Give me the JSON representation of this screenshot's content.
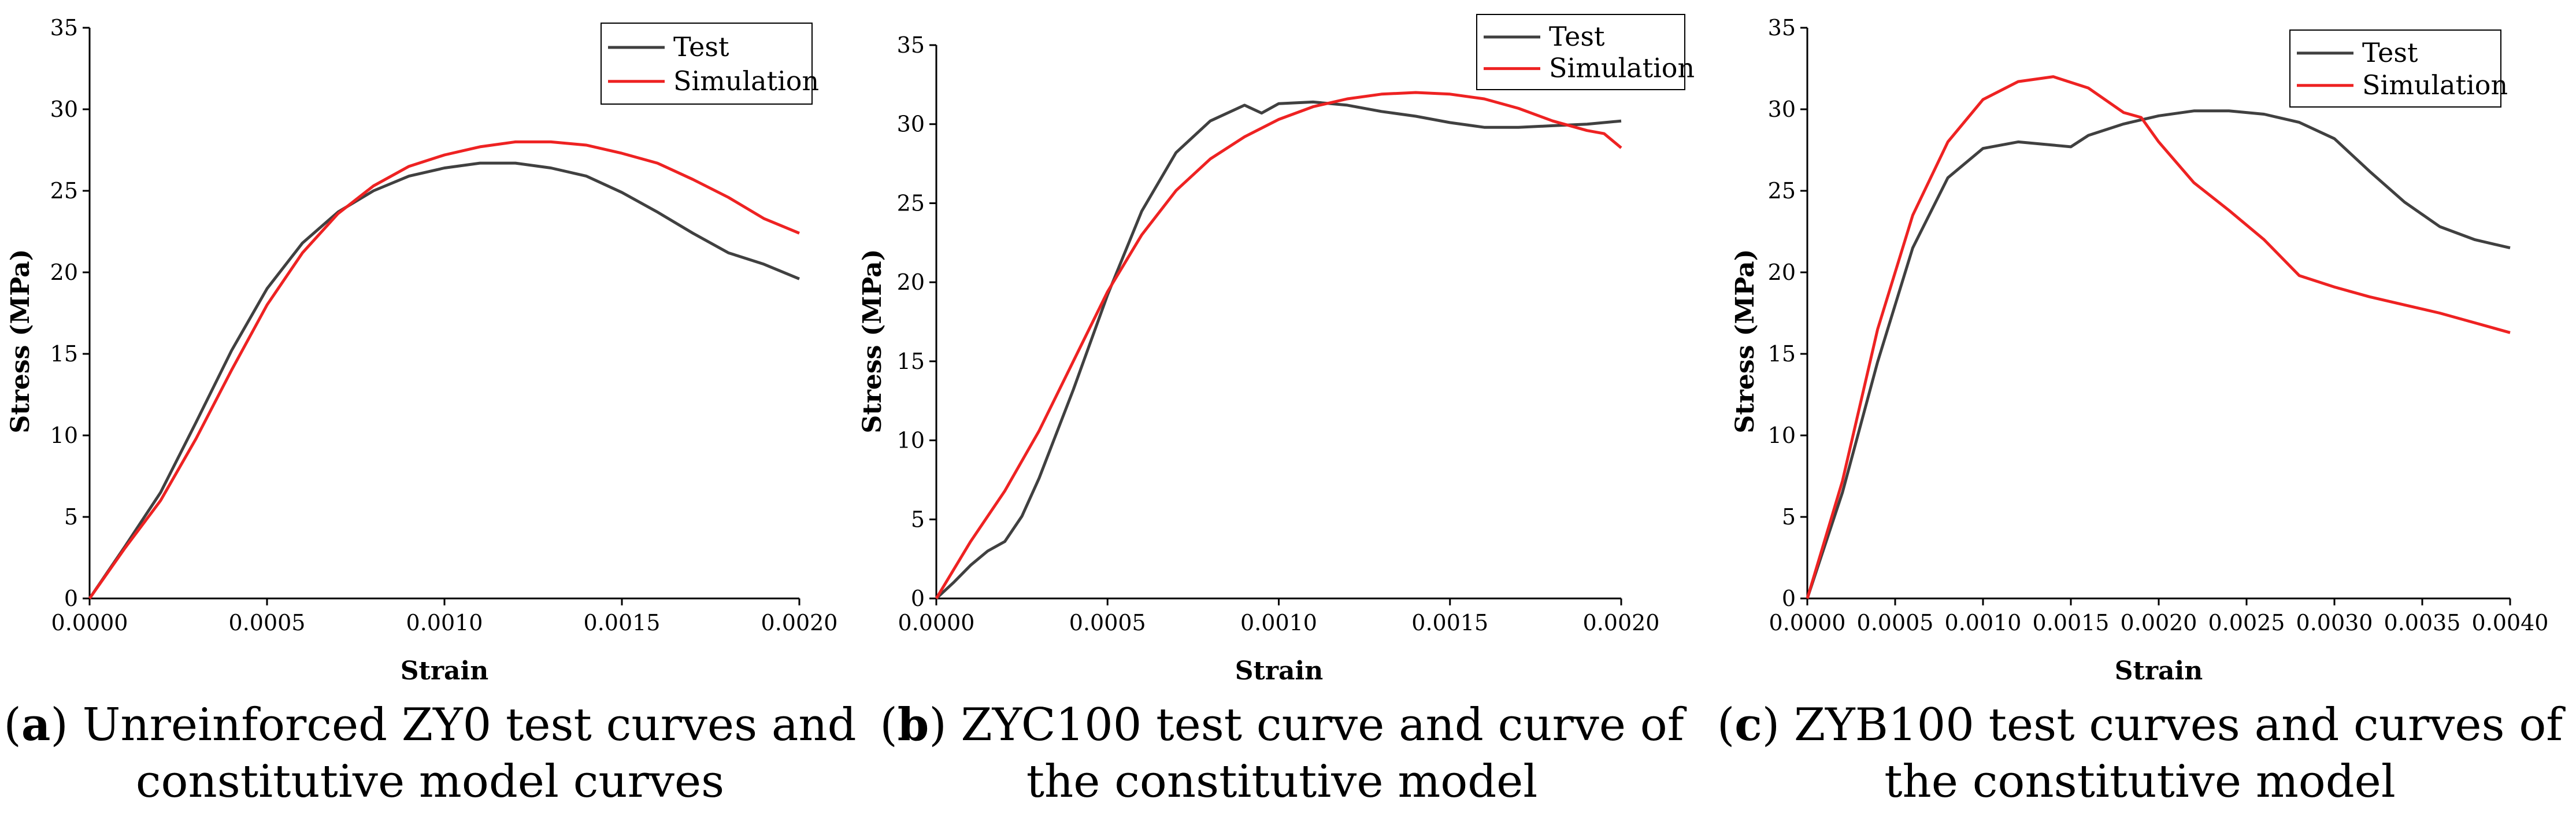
{
  "chart_data": [
    {
      "type": "line",
      "xlabel": "Strain",
      "ylabel": "Stress (MPa)",
      "xlim": [
        0,
        0.002
      ],
      "ylim": [
        0,
        35
      ],
      "xticks": [
        "0.0000",
        "0.0005",
        "0.0010",
        "0.0015",
        "0.0020"
      ],
      "yticks": [
        "0",
        "5",
        "10",
        "15",
        "20",
        "25",
        "30",
        "35"
      ],
      "legend_position": "top-right",
      "series": [
        {
          "name": "Test",
          "color": "#404040",
          "x": [
            0,
            0.0001,
            0.0002,
            0.0003,
            0.0004,
            0.0005,
            0.0006,
            0.0007,
            0.0008,
            0.0009,
            0.001,
            0.0011,
            0.0012,
            0.0013,
            0.0014,
            0.0015,
            0.0016,
            0.0017,
            0.0018,
            0.0019,
            0.002
          ],
          "y": [
            0,
            3.2,
            6.5,
            10.8,
            15.2,
            19.0,
            21.8,
            23.7,
            25.0,
            25.9,
            26.4,
            26.7,
            26.7,
            26.4,
            25.9,
            24.9,
            23.7,
            22.4,
            21.2,
            20.5,
            19.6
          ]
        },
        {
          "name": "Simulation",
          "color": "#ee2222",
          "x": [
            0,
            0.0001,
            0.0002,
            0.0003,
            0.0004,
            0.0005,
            0.0006,
            0.0007,
            0.0008,
            0.0009,
            0.001,
            0.0011,
            0.0012,
            0.0013,
            0.0014,
            0.0015,
            0.0016,
            0.0017,
            0.0018,
            0.0019,
            0.002
          ],
          "y": [
            0,
            3.1,
            6.0,
            9.8,
            14.0,
            18.0,
            21.2,
            23.6,
            25.3,
            26.5,
            27.2,
            27.7,
            28.0,
            28.0,
            27.8,
            27.3,
            26.7,
            25.7,
            24.6,
            23.3,
            22.4
          ]
        }
      ],
      "caption_label": "a",
      "caption_text": ") Unreinforced ZY0 test curves and constitutive model curves"
    },
    {
      "type": "line",
      "xlabel": "Strain",
      "ylabel": "Stress (MPa)",
      "xlim": [
        0,
        0.002
      ],
      "ylim": [
        0,
        35
      ],
      "xticks": [
        "0.0000",
        "0.0005",
        "0.0010",
        "0.0015",
        "0.0020"
      ],
      "yticks": [
        "0",
        "5",
        "10",
        "15",
        "20",
        "25",
        "30",
        "35"
      ],
      "legend_position": "top-right",
      "series": [
        {
          "name": "Test",
          "color": "#404040",
          "x": [
            0,
            5e-05,
            0.0001,
            0.00015,
            0.0002,
            0.00025,
            0.0003,
            0.0004,
            0.0005,
            0.0006,
            0.0007,
            0.0008,
            0.0009,
            0.00092,
            0.00095,
            0.001,
            0.0011,
            0.0012,
            0.0013,
            0.0014,
            0.0015,
            0.0016,
            0.0017,
            0.0018,
            0.0019,
            0.002
          ],
          "y": [
            0,
            1.0,
            2.1,
            3.0,
            3.6,
            5.2,
            7.6,
            13.2,
            19.2,
            24.5,
            28.2,
            30.2,
            31.2,
            31.0,
            30.7,
            31.3,
            31.4,
            31.2,
            30.8,
            30.5,
            30.1,
            29.8,
            29.8,
            29.9,
            30.0,
            30.2
          ]
        },
        {
          "name": "Simulation",
          "color": "#ee2222",
          "x": [
            0,
            0.0001,
            0.0002,
            0.0003,
            0.0004,
            0.0005,
            0.0006,
            0.0007,
            0.0008,
            0.0009,
            0.001,
            0.0011,
            0.0012,
            0.0013,
            0.0014,
            0.0015,
            0.0016,
            0.0017,
            0.0018,
            0.0019,
            0.00195,
            0.002
          ],
          "y": [
            0,
            3.6,
            6.8,
            10.6,
            15.0,
            19.4,
            23.0,
            25.8,
            27.8,
            29.2,
            30.3,
            31.1,
            31.6,
            31.9,
            32.0,
            31.9,
            31.6,
            31.0,
            30.2,
            29.6,
            29.4,
            28.5
          ]
        }
      ],
      "caption_label": "b",
      "caption_text": ") ZYC100 test curve and curve of the constitutive model"
    },
    {
      "type": "line",
      "xlabel": "Strain",
      "ylabel": "Stress (MPa)",
      "xlim": [
        0,
        0.004
      ],
      "ylim": [
        0,
        35
      ],
      "xticks": [
        "0.0000",
        "0.0005",
        "0.0010",
        "0.0015",
        "0.0020",
        "0.0025",
        "0.0030",
        "0.0035",
        "0.0040"
      ],
      "yticks": [
        "0",
        "5",
        "10",
        "15",
        "20",
        "25",
        "30",
        "35"
      ],
      "legend_position": "top-right",
      "series": [
        {
          "name": "Test",
          "color": "#404040",
          "x": [
            0,
            0.0002,
            0.0004,
            0.0006,
            0.0008,
            0.001,
            0.0012,
            0.0014,
            0.0015,
            0.0016,
            0.0018,
            0.002,
            0.0022,
            0.0024,
            0.0026,
            0.0028,
            0.003,
            0.0032,
            0.0034,
            0.0036,
            0.0038,
            0.004
          ],
          "y": [
            0,
            6.5,
            14.5,
            21.5,
            25.8,
            27.6,
            28.0,
            27.8,
            27.7,
            28.4,
            29.1,
            29.6,
            29.9,
            29.9,
            29.7,
            29.2,
            28.2,
            26.2,
            24.3,
            22.8,
            22.0,
            21.5
          ]
        },
        {
          "name": "Simulation",
          "color": "#ee2222",
          "x": [
            0,
            0.0002,
            0.0004,
            0.0006,
            0.0008,
            0.001,
            0.0012,
            0.0014,
            0.0016,
            0.0018,
            0.0019,
            0.002,
            0.0022,
            0.0024,
            0.0026,
            0.0028,
            0.003,
            0.0032,
            0.0034,
            0.0036,
            0.0038,
            0.004
          ],
          "y": [
            0,
            7.2,
            16.5,
            23.5,
            28.0,
            30.6,
            31.7,
            32.0,
            31.3,
            29.8,
            29.5,
            28.0,
            25.5,
            23.8,
            22.0,
            19.8,
            19.1,
            18.5,
            18.0,
            17.5,
            16.9,
            16.3
          ]
        }
      ],
      "caption_label": "c",
      "caption_text": ") ZYB100 test curves and curves of the constitutive model"
    }
  ]
}
